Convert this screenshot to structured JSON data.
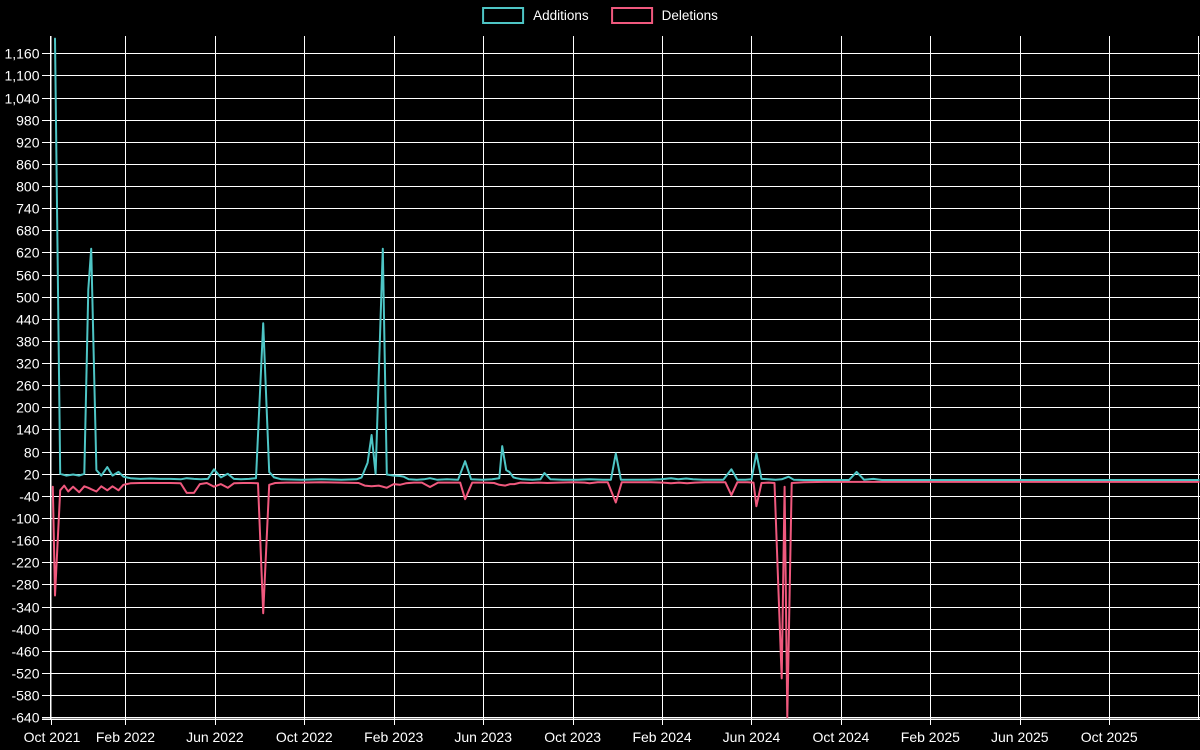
{
  "page": {
    "background": "#000000",
    "title": "Additions and Deletions chart"
  },
  "legend": {
    "items": [
      {
        "label": "Additions",
        "color": "#4EC5C5"
      },
      {
        "label": "Deletions",
        "color": "#F0597E"
      }
    ]
  },
  "chart_data": {
    "type": "line",
    "title": "",
    "xlabel": "",
    "ylabel": "",
    "grid": true,
    "legend_position": "top-center",
    "background": "#000000",
    "grid_color": "#ffffff",
    "text_color": "#ffffff",
    "x_unit": "months since Oct 2021",
    "xlim": [
      0.648,
      52.06
    ],
    "ylim": [
      -645,
      1207
    ],
    "y_tick_step": 60,
    "y_ticks": [
      {
        "label": "1,160",
        "v": 1160
      },
      {
        "label": "1,100",
        "v": 1100
      },
      {
        "label": "1,040",
        "v": 1040
      },
      {
        "label": "980",
        "v": 980
      },
      {
        "label": "920",
        "v": 920
      },
      {
        "label": "860",
        "v": 860
      },
      {
        "label": "800",
        "v": 800
      },
      {
        "label": "740",
        "v": 740
      },
      {
        "label": "680",
        "v": 680
      },
      {
        "label": "620",
        "v": 620
      },
      {
        "label": "560",
        "v": 560
      },
      {
        "label": "500",
        "v": 500
      },
      {
        "label": "440",
        "v": 440
      },
      {
        "label": "380",
        "v": 380
      },
      {
        "label": "320",
        "v": 320
      },
      {
        "label": "260",
        "v": 260
      },
      {
        "label": "200",
        "v": 200
      },
      {
        "label": "140",
        "v": 140
      },
      {
        "label": "80",
        "v": 80
      },
      {
        "label": "20",
        "v": 20
      },
      {
        "label": "-40",
        "v": -40
      },
      {
        "label": "-100",
        "v": -100
      },
      {
        "label": "-160",
        "v": -160
      },
      {
        "label": "-220",
        "v": -220
      },
      {
        "label": "-280",
        "v": -280
      },
      {
        "label": "-340",
        "v": -340
      },
      {
        "label": "-400",
        "v": -400
      },
      {
        "label": "-460",
        "v": -460
      },
      {
        "label": "-520",
        "v": -520
      },
      {
        "label": "-580",
        "v": -580
      },
      {
        "label": "-640",
        "v": -640
      }
    ],
    "x_ticks": [
      {
        "label": "Oct 2021",
        "m": 0
      },
      {
        "label": "Feb 2022",
        "m": 4
      },
      {
        "label": "Jun 2022",
        "m": 8
      },
      {
        "label": "Oct 2022",
        "m": 12
      },
      {
        "label": "Feb 2023",
        "m": 16
      },
      {
        "label": "Jun 2023",
        "m": 20
      },
      {
        "label": "Oct 2023",
        "m": 24
      },
      {
        "label": "Feb 2024",
        "m": 28
      },
      {
        "label": "Jun 2024",
        "m": 32
      },
      {
        "label": "Oct 2024",
        "m": 36
      },
      {
        "label": "Feb 2025",
        "m": 40
      },
      {
        "label": "Jun 2025",
        "m": 44
      },
      {
        "label": "Oct 2025",
        "m": 48
      }
    ],
    "series": [
      {
        "name": "Deletions",
        "color": "#F0597E",
        "points": [
          [
            0.75,
            -15
          ],
          [
            0.85,
            -310
          ],
          [
            1.08,
            -25
          ],
          [
            1.26,
            -12
          ],
          [
            1.44,
            -28
          ],
          [
            1.66,
            -15
          ],
          [
            1.93,
            -30
          ],
          [
            2.16,
            -14
          ],
          [
            2.34,
            -18
          ],
          [
            2.47,
            -22
          ],
          [
            2.7,
            -28
          ],
          [
            2.92,
            -14
          ],
          [
            3.19,
            -25
          ],
          [
            3.42,
            -14
          ],
          [
            3.69,
            -25
          ],
          [
            3.91,
            -10
          ],
          [
            4.22,
            -6
          ],
          [
            4.67,
            -5
          ],
          [
            5.35,
            -5
          ],
          [
            6.02,
            -5
          ],
          [
            6.47,
            -6
          ],
          [
            6.74,
            -32
          ],
          [
            7.06,
            -32
          ],
          [
            7.33,
            -8
          ],
          [
            7.64,
            -5
          ],
          [
            7.96,
            -15
          ],
          [
            8.27,
            -8
          ],
          [
            8.58,
            -18
          ],
          [
            8.85,
            -6
          ],
          [
            9.26,
            -5
          ],
          [
            9.62,
            -5
          ],
          [
            9.93,
            -6
          ],
          [
            10.16,
            -358
          ],
          [
            10.43,
            -10
          ],
          [
            10.7,
            -5
          ],
          [
            11.19,
            -4
          ],
          [
            11.87,
            -4
          ],
          [
            12.76,
            -3
          ],
          [
            13.66,
            -4
          ],
          [
            14.43,
            -5
          ],
          [
            14.7,
            -12
          ],
          [
            15.01,
            -14
          ],
          [
            15.33,
            -12
          ],
          [
            15.69,
            -18
          ],
          [
            16.0,
            -8
          ],
          [
            16.27,
            -10
          ],
          [
            16.54,
            -6
          ],
          [
            16.9,
            -4
          ],
          [
            17.26,
            -4
          ],
          [
            17.62,
            -16
          ],
          [
            17.98,
            -4
          ],
          [
            18.52,
            -4
          ],
          [
            18.97,
            -4
          ],
          [
            19.19,
            -49
          ],
          [
            19.51,
            -4
          ],
          [
            20.04,
            -4
          ],
          [
            20.49,
            -5
          ],
          [
            20.72,
            -10
          ],
          [
            20.99,
            -12
          ],
          [
            21.21,
            -8
          ],
          [
            21.39,
            -8
          ],
          [
            21.66,
            -4
          ],
          [
            22.11,
            -5
          ],
          [
            22.47,
            -4
          ],
          [
            22.87,
            -5
          ],
          [
            23.37,
            -4
          ],
          [
            24.0,
            -3
          ],
          [
            24.54,
            -4
          ],
          [
            24.76,
            -6
          ],
          [
            25.12,
            -3
          ],
          [
            25.57,
            -3
          ],
          [
            25.93,
            -58
          ],
          [
            26.2,
            -3
          ],
          [
            26.79,
            -3
          ],
          [
            27.51,
            -3
          ],
          [
            28.04,
            -4
          ],
          [
            28.4,
            -6
          ],
          [
            28.76,
            -4
          ],
          [
            29.12,
            -6
          ],
          [
            29.48,
            -4
          ],
          [
            29.93,
            -3
          ],
          [
            30.47,
            -3
          ],
          [
            30.83,
            -3
          ],
          [
            31.1,
            -38
          ],
          [
            31.37,
            -3
          ],
          [
            31.82,
            -3
          ],
          [
            32.09,
            -4
          ],
          [
            32.22,
            -68
          ],
          [
            32.45,
            -5
          ],
          [
            32.76,
            -4
          ],
          [
            33.03,
            -5
          ],
          [
            33.35,
            -535
          ],
          [
            33.48,
            -15
          ],
          [
            33.6,
            -640
          ],
          [
            33.8,
            -5
          ],
          [
            34.34,
            -3
          ],
          [
            35.24,
            -2
          ],
          [
            36.36,
            -2
          ],
          [
            37.48,
            -2
          ],
          [
            38.83,
            -2
          ],
          [
            41,
            -2
          ],
          [
            43,
            -2
          ],
          [
            45,
            -2
          ],
          [
            47,
            -2
          ],
          [
            49,
            -2
          ],
          [
            51,
            -2
          ],
          [
            52.0,
            -2
          ]
        ]
      },
      {
        "name": "Additions",
        "color": "#4EC5C5",
        "points": [
          [
            0.85,
            1200
          ],
          [
            1.08,
            20
          ],
          [
            1.35,
            15
          ],
          [
            1.66,
            18
          ],
          [
            1.93,
            15
          ],
          [
            2.16,
            20
          ],
          [
            2.34,
            520
          ],
          [
            2.47,
            630
          ],
          [
            2.7,
            30
          ],
          [
            2.92,
            15
          ],
          [
            3.19,
            38
          ],
          [
            3.42,
            15
          ],
          [
            3.69,
            25
          ],
          [
            3.91,
            12
          ],
          [
            4.22,
            8
          ],
          [
            4.67,
            6
          ],
          [
            5.12,
            7
          ],
          [
            5.57,
            6
          ],
          [
            6.02,
            6
          ],
          [
            6.47,
            5
          ],
          [
            6.74,
            8
          ],
          [
            7.06,
            6
          ],
          [
            7.37,
            5
          ],
          [
            7.69,
            6
          ],
          [
            7.96,
            32
          ],
          [
            8.27,
            10
          ],
          [
            8.58,
            20
          ],
          [
            8.85,
            6
          ],
          [
            9.17,
            5
          ],
          [
            9.53,
            6
          ],
          [
            9.84,
            8
          ],
          [
            10.16,
            428
          ],
          [
            10.43,
            25
          ],
          [
            10.65,
            10
          ],
          [
            10.97,
            5
          ],
          [
            11.87,
            4
          ],
          [
            12.76,
            5
          ],
          [
            13.66,
            4
          ],
          [
            14.34,
            5
          ],
          [
            14.56,
            10
          ],
          [
            14.83,
            50
          ],
          [
            15.01,
            125
          ],
          [
            15.19,
            20
          ],
          [
            15.51,
            630
          ],
          [
            15.69,
            18
          ],
          [
            16.0,
            15
          ],
          [
            16.27,
            14
          ],
          [
            16.45,
            12
          ],
          [
            16.67,
            5
          ],
          [
            17.03,
            4
          ],
          [
            17.35,
            5
          ],
          [
            17.62,
            8
          ],
          [
            17.93,
            4
          ],
          [
            18.38,
            5
          ],
          [
            18.88,
            4
          ],
          [
            19.19,
            54
          ],
          [
            19.46,
            5
          ],
          [
            19.96,
            4
          ],
          [
            20.4,
            5
          ],
          [
            20.72,
            8
          ],
          [
            20.85,
            95
          ],
          [
            21.03,
            30
          ],
          [
            21.17,
            25
          ],
          [
            21.35,
            10
          ],
          [
            21.48,
            8
          ],
          [
            21.75,
            5
          ],
          [
            22.2,
            4
          ],
          [
            22.56,
            5
          ],
          [
            22.74,
            22
          ],
          [
            23.01,
            5
          ],
          [
            23.55,
            4
          ],
          [
            24.22,
            4
          ],
          [
            24.76,
            5
          ],
          [
            25.35,
            4
          ],
          [
            25.71,
            4
          ],
          [
            25.93,
            75
          ],
          [
            26.16,
            4
          ],
          [
            26.7,
            4
          ],
          [
            27.37,
            4
          ],
          [
            27.96,
            5
          ],
          [
            28.4,
            8
          ],
          [
            28.72,
            5
          ],
          [
            29.08,
            7
          ],
          [
            29.39,
            5
          ],
          [
            29.84,
            4
          ],
          [
            30.29,
            4
          ],
          [
            30.74,
            4
          ],
          [
            31.1,
            32
          ],
          [
            31.37,
            4
          ],
          [
            31.73,
            4
          ],
          [
            32.0,
            5
          ],
          [
            32.22,
            75
          ],
          [
            32.45,
            6
          ],
          [
            32.76,
            5
          ],
          [
            33.08,
            4
          ],
          [
            33.35,
            5
          ],
          [
            33.66,
            12
          ],
          [
            33.89,
            4
          ],
          [
            34.34,
            3
          ],
          [
            35.01,
            3
          ],
          [
            35.69,
            3
          ],
          [
            36.36,
            3
          ],
          [
            36.7,
            25
          ],
          [
            37.03,
            4
          ],
          [
            37.45,
            6
          ],
          [
            37.84,
            3
          ],
          [
            38.38,
            3
          ],
          [
            40,
            3
          ],
          [
            42,
            3
          ],
          [
            44,
            3
          ],
          [
            46,
            3
          ],
          [
            48,
            3
          ],
          [
            50,
            3
          ],
          [
            52.0,
            3
          ]
        ]
      }
    ]
  }
}
